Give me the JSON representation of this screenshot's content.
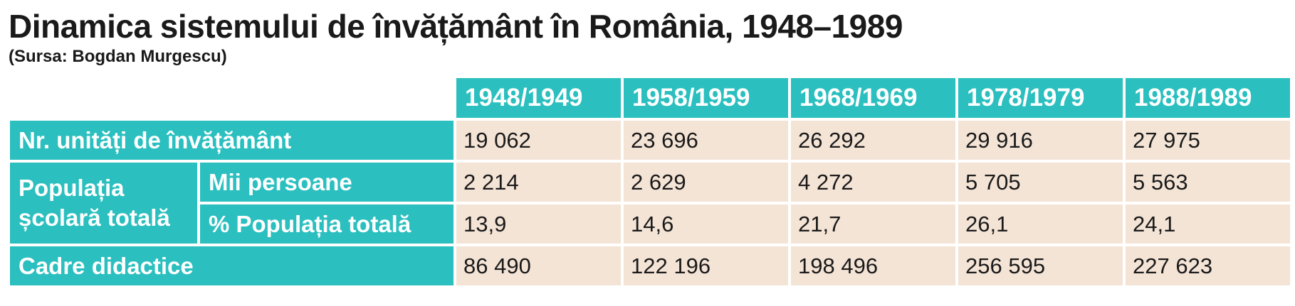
{
  "title": "Dinamica sistemului de învățământ în România, 1948–1989",
  "source": "(Sursa: Bogdan Murgescu)",
  "colors": {
    "header": "#2bbfbf",
    "cell": "#f4e4d6",
    "text": "#1a1a1a"
  },
  "chart_data": {
    "type": "table",
    "columns": [
      "1948/1949",
      "1958/1959",
      "1968/1969",
      "1978/1979",
      "1988/1989"
    ],
    "rows": [
      {
        "label": "Nr. unități de învățământ",
        "values": [
          "19 062",
          "23 696",
          "26 292",
          "29 916",
          "27 975"
        ]
      },
      {
        "group": "Populația școlară totală",
        "label": "Mii persoane",
        "values": [
          "2 214",
          "2 629",
          "4 272",
          "5 705",
          "5 563"
        ]
      },
      {
        "group": "Populația școlară totală",
        "label": "% Populația totală",
        "values": [
          "13,9",
          "14,6",
          "21,7",
          "26,1",
          "24,1"
        ]
      },
      {
        "label": "Cadre didactice",
        "values": [
          "86 490",
          "122 196",
          "198 496",
          "256 595",
          "227 623"
        ]
      }
    ]
  }
}
